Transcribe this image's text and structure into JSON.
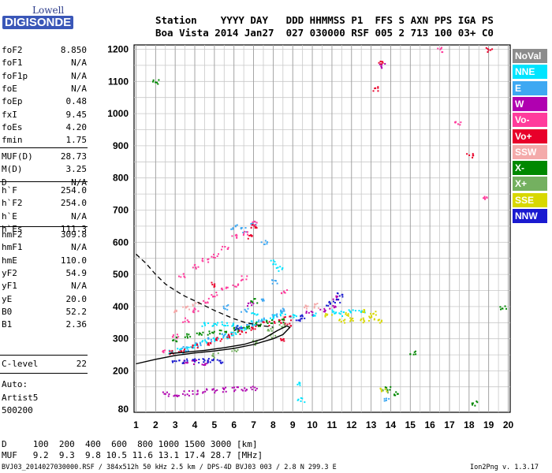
{
  "logo": {
    "top": "Lowell",
    "bottom": "DIGISONDE"
  },
  "header": {
    "line1": "Station    YYYY DAY   DDD HHMMSS P1  FFS S AXN PPS IGA PS",
    "line2": "Boa Vista 2014 Jan27  027 030000 RSF 005 2 713 100 03+ C0"
  },
  "params": {
    "group1": [
      {
        "k": "foF2",
        "v": "8.850"
      },
      {
        "k": "foF1",
        "v": "N/A"
      },
      {
        "k": "foF1p",
        "v": "N/A"
      },
      {
        "k": "foE",
        "v": "N/A"
      },
      {
        "k": "foEp",
        "v": "0.48"
      },
      {
        "k": "fxI",
        "v": "9.45"
      },
      {
        "k": "foEs",
        "v": "4.20"
      },
      {
        "k": "fmin",
        "v": "1.75"
      }
    ],
    "group2": [
      {
        "k": "MUF(D)",
        "v": "28.73"
      },
      {
        "k": "M(D)",
        "v": "3.25"
      },
      {
        "k": "D",
        "v": "N/A"
      }
    ],
    "group3": [
      {
        "k": "h`F",
        "v": "254.0"
      },
      {
        "k": "h`F2",
        "v": "254.0"
      },
      {
        "k": "h`E",
        "v": "N/A"
      },
      {
        "k": "h`Es",
        "v": "111.3"
      }
    ],
    "group4": [
      {
        "k": "hmF2",
        "v": "309.8"
      },
      {
        "k": "hmF1",
        "v": "N/A"
      },
      {
        "k": "hmE",
        "v": "110.0"
      },
      {
        "k": "yF2",
        "v": "54.9"
      },
      {
        "k": "yF1",
        "v": "N/A"
      },
      {
        "k": "yE",
        "v": "20.0"
      },
      {
        "k": "B0",
        "v": "52.2"
      },
      {
        "k": "B1",
        "v": "2.36"
      }
    ],
    "group5": [
      {
        "k": "C-level",
        "v": "22"
      }
    ],
    "auto": [
      "Auto:",
      "Artist5",
      "500200"
    ]
  },
  "footer": {
    "d_row": "D     100  200  400  600  800 1000 1500 3000 [km]",
    "muf_row": "MUF   9.2  9.3  9.8 10.5 11.6 13.1 17.4 28.7 [MHz]",
    "file_info": "BVJ03_2014027030000.RSF / 384x512h 50 kHz 2.5 km / DPS-4D BVJ03 003 / 2.8 N 299.3 E",
    "version": "Ion2Png v. 1.3.17"
  },
  "legend": [
    {
      "label": "NoVal",
      "bg": "#8c8c8c",
      "fg": "#ffffff"
    },
    {
      "label": "NNE",
      "bg": "#00e4ff",
      "fg": "#ffffff"
    },
    {
      "label": "E",
      "bg": "#3ea8f2",
      "fg": "#ffffff"
    },
    {
      "label": "W",
      "bg": "#b000b0",
      "fg": "#ffffff"
    },
    {
      "label": "Vo-",
      "bg": "#ff3c9c",
      "fg": "#ffffff"
    },
    {
      "label": "Vo+",
      "bg": "#e8002a",
      "fg": "#ffffff"
    },
    {
      "label": "SSW",
      "bg": "#f4aaaa",
      "fg": "#ffffff"
    },
    {
      "label": "X-",
      "bg": "#008800",
      "fg": "#ffffff"
    },
    {
      "label": "X+",
      "bg": "#74b060",
      "fg": "#ffffff"
    },
    {
      "label": "SSE",
      "bg": "#d8d800",
      "fg": "#ffffff"
    },
    {
      "label": "NNW",
      "bg": "#1a1ad0",
      "fg": "#ffffff"
    }
  ],
  "chart_data": {
    "type": "scatter",
    "x_ticks": [
      1,
      2,
      3,
      4,
      5,
      6,
      7,
      8,
      9,
      10,
      11,
      12,
      13,
      14,
      15,
      16,
      17,
      18,
      19,
      20
    ],
    "y_ticks": [
      80,
      200,
      300,
      400,
      500,
      600,
      700,
      800,
      900,
      1000,
      1100,
      1200
    ],
    "xlim": [
      0.9,
      20.1
    ],
    "ylim": [
      80,
      1200
    ],
    "grid": true,
    "legend_position": "right",
    "series": [
      {
        "name": "NNE",
        "color": "#00e4ff",
        "points": [
          [
            2.8,
            262
          ],
          [
            3.2,
            265
          ],
          [
            3.6,
            272
          ],
          [
            4.0,
            280
          ],
          [
            4.5,
            292
          ],
          [
            5.0,
            300
          ],
          [
            5.5,
            310
          ],
          [
            6.0,
            320
          ],
          [
            6.5,
            335
          ],
          [
            7.0,
            350
          ],
          [
            7.5,
            355
          ],
          [
            8.0,
            370
          ],
          [
            8.5,
            380
          ],
          [
            9.0,
            375
          ],
          [
            10.0,
            380
          ],
          [
            11.0,
            385
          ],
          [
            11.5,
            380
          ],
          [
            12.0,
            390
          ],
          [
            12.5,
            385
          ],
          [
            4.5,
            345
          ],
          [
            5.0,
            345
          ],
          [
            5.5,
            350
          ],
          [
            6.0,
            345
          ],
          [
            7.0,
            380
          ],
          [
            8.0,
            540
          ],
          [
            8.3,
            520
          ],
          [
            9.3,
            160
          ],
          [
            9.4,
            110
          ]
        ]
      },
      {
        "name": "E",
        "color": "#3ea8f2",
        "points": [
          [
            3.5,
            270
          ],
          [
            4.2,
            285
          ],
          [
            4.8,
            300
          ],
          [
            5.5,
            315
          ],
          [
            6.2,
            330
          ],
          [
            6.8,
            345
          ],
          [
            7.4,
            360
          ],
          [
            8.0,
            375
          ],
          [
            8.5,
            390
          ],
          [
            6.0,
            650
          ],
          [
            6.5,
            640
          ],
          [
            7.0,
            660
          ],
          [
            7.5,
            600
          ],
          [
            8.0,
            480
          ],
          [
            5.5,
            400
          ],
          [
            6.5,
            390
          ],
          [
            7.5,
            420
          ],
          [
            13.8,
            110
          ]
        ]
      },
      {
        "name": "W",
        "color": "#b000b0",
        "points": [
          [
            2.5,
            130
          ],
          [
            3.0,
            128
          ],
          [
            3.5,
            132
          ],
          [
            4.0,
            135
          ],
          [
            4.5,
            138
          ],
          [
            5.0,
            140
          ],
          [
            5.5,
            143
          ],
          [
            6.0,
            145
          ],
          [
            6.5,
            147
          ],
          [
            7.0,
            148
          ],
          [
            10.5,
            390
          ],
          [
            11.0,
            400
          ],
          [
            11.2,
            430
          ],
          [
            9.8,
            380
          ],
          [
            3.5,
            228
          ],
          [
            4.0,
            230
          ],
          [
            4.5,
            228
          ],
          [
            6.8,
            410
          ],
          [
            13.5,
            1150
          ]
        ]
      },
      {
        "name": "Vo-",
        "color": "#ff3c9c",
        "points": [
          [
            3.0,
            310
          ],
          [
            3.5,
            360
          ],
          [
            4.0,
            390
          ],
          [
            4.5,
            420
          ],
          [
            5.0,
            440
          ],
          [
            5.5,
            455
          ],
          [
            6.0,
            470
          ],
          [
            6.5,
            490
          ],
          [
            3.3,
            500
          ],
          [
            4.0,
            525
          ],
          [
            4.5,
            545
          ],
          [
            5.0,
            560
          ],
          [
            5.5,
            585
          ],
          [
            6.0,
            620
          ],
          [
            6.5,
            630
          ],
          [
            7.0,
            660
          ],
          [
            2.5,
            260
          ],
          [
            8.5,
            450
          ],
          [
            18.7,
            740
          ],
          [
            17.4,
            970
          ],
          [
            16.5,
            1200
          ]
        ]
      },
      {
        "name": "Vo+",
        "color": "#e8002a",
        "points": [
          [
            2.7,
            258
          ],
          [
            3.3,
            266
          ],
          [
            4.0,
            278
          ],
          [
            4.6,
            290
          ],
          [
            5.2,
            300
          ],
          [
            5.8,
            312
          ],
          [
            6.4,
            322
          ],
          [
            7.0,
            335
          ],
          [
            7.6,
            350
          ],
          [
            8.2,
            355
          ],
          [
            8.7,
            365
          ],
          [
            6.8,
            620
          ],
          [
            7.0,
            650
          ],
          [
            5.0,
            470
          ],
          [
            18.0,
            870
          ],
          [
            19.0,
            1200
          ],
          [
            13.5,
            1160
          ],
          [
            13.2,
            1080
          ],
          [
            8.5,
            300
          ],
          [
            8.7,
            345
          ]
        ]
      },
      {
        "name": "SSW",
        "color": "#f4aaaa",
        "points": [
          [
            3.0,
            385
          ],
          [
            3.5,
            400
          ],
          [
            4.0,
            410
          ],
          [
            9.6,
            400
          ],
          [
            10.2,
            405
          ]
        ]
      },
      {
        "name": "X-",
        "color": "#008800",
        "points": [
          [
            3.0,
            300
          ],
          [
            3.6,
            310
          ],
          [
            4.2,
            315
          ],
          [
            4.8,
            318
          ],
          [
            5.4,
            322
          ],
          [
            6.0,
            330
          ],
          [
            6.6,
            340
          ],
          [
            7.2,
            345
          ],
          [
            7.8,
            355
          ],
          [
            8.4,
            360
          ],
          [
            7.0,
            420
          ],
          [
            13.8,
            145
          ],
          [
            14.2,
            130
          ],
          [
            2.0,
            1100
          ],
          [
            18.2,
            100
          ],
          [
            15.1,
            260
          ],
          [
            19.7,
            400
          ]
        ]
      },
      {
        "name": "X+",
        "color": "#74b060",
        "points": [
          [
            5.0,
            250
          ],
          [
            6.0,
            270
          ],
          [
            7.0,
            290
          ],
          [
            8.0,
            310
          ],
          [
            13.7,
            140
          ],
          [
            7.8,
            330
          ],
          [
            8.4,
            345
          ]
        ]
      },
      {
        "name": "SSE",
        "color": "#d8d800",
        "points": [
          [
            11.5,
            355
          ],
          [
            12.0,
            360
          ],
          [
            12.5,
            360
          ],
          [
            13.0,
            365
          ],
          [
            13.5,
            355
          ],
          [
            11.8,
            380
          ],
          [
            12.5,
            390
          ],
          [
            13.1,
            380
          ],
          [
            10.8,
            375
          ],
          [
            13.6,
            140
          ]
        ]
      },
      {
        "name": "NNW",
        "color": "#1a1ad0",
        "points": [
          [
            3.0,
            232
          ],
          [
            3.5,
            232
          ],
          [
            4.0,
            233
          ],
          [
            4.5,
            233
          ],
          [
            4.8,
            232
          ],
          [
            5.2,
            232
          ],
          [
            10.8,
            410
          ],
          [
            11.2,
            420
          ],
          [
            11.4,
            440
          ],
          [
            9.2,
            360
          ],
          [
            9.4,
            370
          ],
          [
            6.2,
            335
          ]
        ]
      }
    ],
    "trace_solid": [
      [
        1.0,
        222
      ],
      [
        2.0,
        236
      ],
      [
        3.0,
        248
      ],
      [
        4.0,
        256
      ],
      [
        5.0,
        262
      ],
      [
        6.0,
        270
      ],
      [
        7.0,
        282
      ],
      [
        8.0,
        300
      ],
      [
        8.5,
        313
      ],
      [
        8.85,
        335
      ],
      [
        8.7,
        340
      ],
      [
        8.2,
        325
      ],
      [
        7.5,
        300
      ],
      [
        6.5,
        282
      ],
      [
        5.5,
        272
      ],
      [
        4.5,
        264
      ],
      [
        3.5,
        258
      ],
      [
        2.7,
        254
      ]
    ],
    "trace_dashed": [
      [
        1.0,
        563
      ],
      [
        1.5,
        535
      ],
      [
        2.0,
        500
      ],
      [
        2.5,
        470
      ],
      [
        3.0,
        450
      ],
      [
        3.5,
        432
      ],
      [
        4.0,
        418
      ],
      [
        4.5,
        403
      ],
      [
        5.0,
        388
      ],
      [
        5.5,
        375
      ],
      [
        6.0,
        362
      ],
      [
        6.5,
        352
      ],
      [
        7.0,
        345
      ],
      [
        7.5,
        340
      ],
      [
        8.0,
        336
      ]
    ]
  }
}
